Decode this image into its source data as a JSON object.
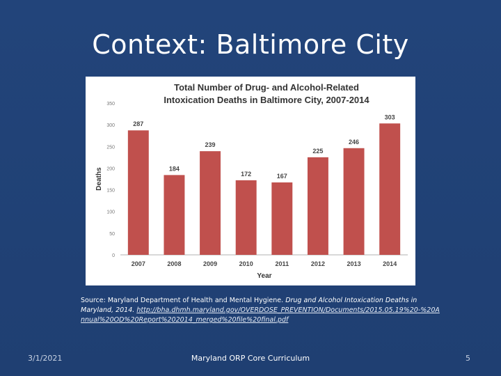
{
  "slide": {
    "title": "Context: Baltimore City",
    "source_prefix": "Source: Maryland Department of Health and Mental Hygiene.",
    "source_italic": "Drug and Alcohol Intoxication Deaths in Maryland, 2014.",
    "source_link": "http://bha.dhmh.maryland.gov/OVERDOSE_PREVENTION/Documents/2015.05.19%20-%20Annual%20OD%20Report%202014_merged%20file%20final.pdf",
    "footer_date": "3/1/2021",
    "footer_center": "Maryland ORP Core Curriculum",
    "page_number": "5"
  },
  "chart_data": {
    "type": "bar",
    "title_line1": "Total Number of Drug- and Alcohol-Related",
    "title_line2": "Intoxication Deaths in Baltimore City, 2007-2014",
    "xlabel": "Year",
    "ylabel": "Deaths",
    "categories": [
      "2007",
      "2008",
      "2009",
      "2010",
      "2011",
      "2012",
      "2013",
      "2014"
    ],
    "values": [
      287,
      184,
      239,
      172,
      167,
      225,
      246,
      303
    ],
    "ylim": [
      0,
      350
    ],
    "yticks": [
      0,
      50,
      100,
      150,
      200,
      250,
      300,
      350
    ],
    "bar_color": "#c0504d",
    "grid": false,
    "legend": "none"
  }
}
